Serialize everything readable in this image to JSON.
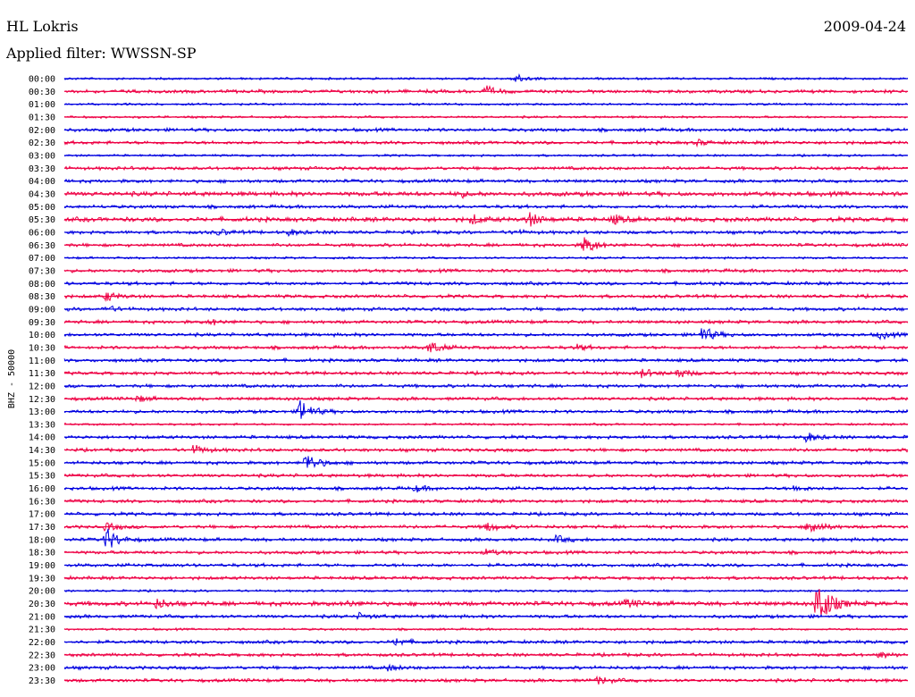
{
  "header": {
    "station": "HL Lokris",
    "date": "2009-04-24",
    "filter": "Applied filter: WWSSN-SP"
  },
  "colors": {
    "trace_a": "#0000e0",
    "trace_b": "#ee0044"
  },
  "chart_data": {
    "type": "line",
    "title": "HL Lokris",
    "ylabel": "BHZ - 50000",
    "row_labels": [
      "00:00",
      "00:30",
      "01:00",
      "01:30",
      "02:00",
      "02:30",
      "03:00",
      "03:30",
      "04:00",
      "04:30",
      "05:00",
      "05:30",
      "06:00",
      "06:30",
      "07:00",
      "07:30",
      "08:00",
      "08:30",
      "09:00",
      "09:30",
      "10:00",
      "10:30",
      "11:00",
      "11:30",
      "12:00",
      "12:30",
      "13:00",
      "13:30",
      "14:00",
      "14:30",
      "15:00",
      "15:30",
      "16:00",
      "16:30",
      "17:00",
      "17:30",
      "18:00",
      "18:30",
      "19:00",
      "19:30",
      "20:00",
      "20:30",
      "21:00",
      "21:30",
      "22:00",
      "22:30",
      "23:00",
      "23:30"
    ],
    "row_minutes": 30,
    "traces": [
      {
        "noise": 1.0,
        "events": [
          {
            "minute": 16.0,
            "amp": 6
          }
        ]
      },
      {
        "noise": 1.5,
        "events": [
          {
            "minute": 15.0,
            "amp": 5
          }
        ]
      },
      {
        "noise": 1.0,
        "events": []
      },
      {
        "noise": 1.0,
        "events": []
      },
      {
        "noise": 1.5,
        "events": []
      },
      {
        "noise": 1.5,
        "events": [
          {
            "minute": 22.5,
            "amp": 3
          }
        ]
      },
      {
        "noise": 1.0,
        "events": []
      },
      {
        "noise": 1.5,
        "events": []
      },
      {
        "noise": 1.5,
        "events": []
      },
      {
        "noise": 2.0,
        "events": [
          {
            "minute": 14.0,
            "amp": 3
          }
        ]
      },
      {
        "noise": 1.5,
        "events": []
      },
      {
        "noise": 2.0,
        "events": [
          {
            "minute": 14.5,
            "amp": 5
          },
          {
            "minute": 16.5,
            "amp": 8
          },
          {
            "minute": 19.5,
            "amp": 5
          }
        ]
      },
      {
        "noise": 1.5,
        "events": [
          {
            "minute": 5.5,
            "amp": 3
          },
          {
            "minute": 8.0,
            "amp": 3
          },
          {
            "minute": 16.0,
            "amp": 2
          }
        ]
      },
      {
        "noise": 1.5,
        "events": [
          {
            "minute": 18.5,
            "amp": 10
          }
        ]
      },
      {
        "noise": 1.0,
        "events": []
      },
      {
        "noise": 1.5,
        "events": []
      },
      {
        "noise": 1.5,
        "events": []
      },
      {
        "noise": 1.5,
        "events": [
          {
            "minute": 1.5,
            "amp": 5
          }
        ]
      },
      {
        "noise": 1.5,
        "events": [
          {
            "minute": 1.5,
            "amp": 3
          }
        ]
      },
      {
        "noise": 1.5,
        "events": [
          {
            "minute": 5.2,
            "amp": 3
          }
        ]
      },
      {
        "noise": 1.5,
        "events": [
          {
            "minute": 22.7,
            "amp": 9
          },
          {
            "minute": 29.0,
            "amp": 4
          }
        ]
      },
      {
        "noise": 1.5,
        "events": [
          {
            "minute": 13.0,
            "amp": 7
          },
          {
            "minute": 18.2,
            "amp": 3
          }
        ]
      },
      {
        "noise": 1.5,
        "events": []
      },
      {
        "noise": 1.5,
        "events": [
          {
            "minute": 20.5,
            "amp": 5
          },
          {
            "minute": 21.8,
            "amp": 5
          }
        ]
      },
      {
        "noise": 1.5,
        "events": []
      },
      {
        "noise": 1.5,
        "events": [
          {
            "minute": 2.6,
            "amp": 3
          }
        ]
      },
      {
        "noise": 1.5,
        "events": [
          {
            "minute": 8.4,
            "amp": 13
          }
        ]
      },
      {
        "noise": 1.0,
        "events": []
      },
      {
        "noise": 1.5,
        "events": [
          {
            "minute": 26.4,
            "amp": 5
          }
        ]
      },
      {
        "noise": 1.5,
        "events": [
          {
            "minute": 4.6,
            "amp": 5
          }
        ]
      },
      {
        "noise": 1.5,
        "events": [
          {
            "minute": 8.6,
            "amp": 11
          }
        ]
      },
      {
        "noise": 1.5,
        "events": []
      },
      {
        "noise": 1.5,
        "events": [
          {
            "minute": 12.5,
            "amp": 3
          },
          {
            "minute": 26.0,
            "amp": 3
          }
        ]
      },
      {
        "noise": 1.5,
        "events": []
      },
      {
        "noise": 1.5,
        "events": []
      },
      {
        "noise": 1.5,
        "events": [
          {
            "minute": 1.5,
            "amp": 4
          },
          {
            "minute": 15.0,
            "amp": 5
          },
          {
            "minute": 26.5,
            "amp": 10
          }
        ]
      },
      {
        "noise": 1.5,
        "events": [
          {
            "minute": 1.5,
            "amp": 13
          },
          {
            "minute": 17.5,
            "amp": 4
          }
        ]
      },
      {
        "noise": 1.5,
        "events": [
          {
            "minute": 15.0,
            "amp": 3
          }
        ]
      },
      {
        "noise": 1.5,
        "events": []
      },
      {
        "noise": 1.5,
        "events": []
      },
      {
        "noise": 1.0,
        "events": []
      },
      {
        "noise": 2.0,
        "events": [
          {
            "minute": 3.3,
            "amp": 5
          },
          {
            "minute": 10.0,
            "amp": 3
          },
          {
            "minute": 20.0,
            "amp": 4
          },
          {
            "minute": 26.8,
            "amp": 30
          }
        ]
      },
      {
        "noise": 1.5,
        "events": [
          {
            "minute": 10.5,
            "amp": 3
          }
        ]
      },
      {
        "noise": 1.0,
        "events": []
      },
      {
        "noise": 1.5,
        "events": [
          {
            "minute": 11.8,
            "amp": 4
          }
        ]
      },
      {
        "noise": 1.5,
        "events": [
          {
            "minute": 29.0,
            "amp": 3
          }
        ]
      },
      {
        "noise": 1.5,
        "events": [
          {
            "minute": 11.5,
            "amp": 3
          }
        ]
      },
      {
        "noise": 1.5,
        "events": [
          {
            "minute": 19.0,
            "amp": 4
          }
        ]
      }
    ]
  }
}
